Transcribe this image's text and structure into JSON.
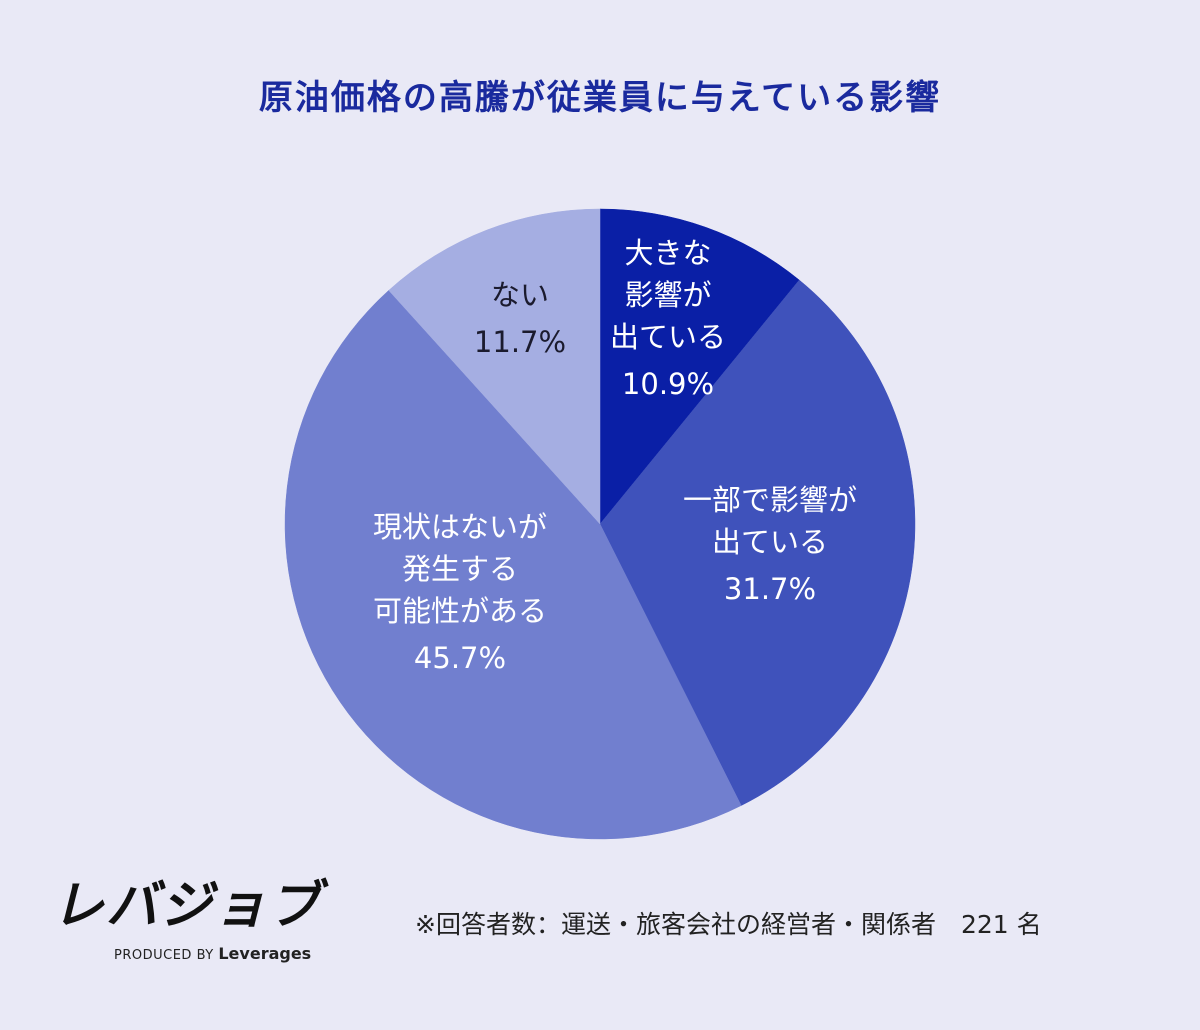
{
  "title": "原油価格の高騰が従業員に与えている影響",
  "chart_data": {
    "type": "pie",
    "slices": [
      {
        "label": "大きな\n影響が\n出ている",
        "value": 10.9,
        "value_text": "10.9%",
        "color": "#0a1fa6",
        "text_color": "#ffffff"
      },
      {
        "label": "一部で影響が\n出ている",
        "value": 31.7,
        "value_text": "31.7%",
        "color": "#3f52bb",
        "text_color": "#ffffff"
      },
      {
        "label": "現状はないが\n発生する\n可能性がある",
        "value": 45.7,
        "value_text": "45.7%",
        "color": "#717fcf",
        "text_color": "#ffffff"
      },
      {
        "label": "ない",
        "value": 11.7,
        "value_text": "11.7%",
        "color": "#a5aee2",
        "text_color": "#1b1b2e"
      }
    ]
  },
  "logo": {
    "mark": "レバジョブ",
    "produced_by": "PRODUCED BY",
    "brand": "Leverages"
  },
  "note": "※回答者数：運送・旅客会社の経営者・関係者　221 名"
}
